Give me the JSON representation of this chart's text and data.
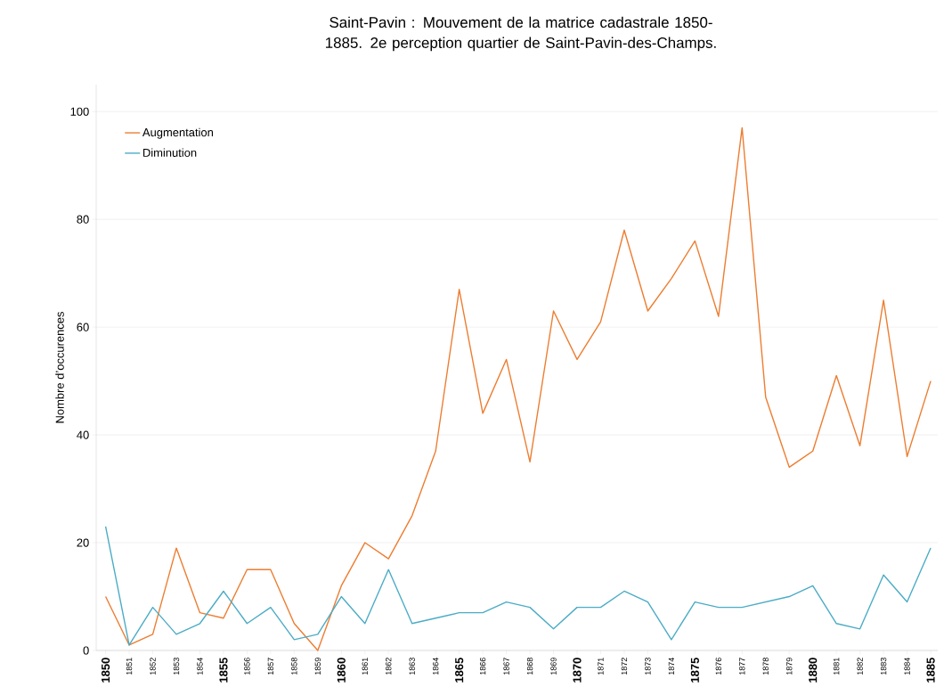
{
  "chart_data": {
    "type": "line",
    "title": "Saint-Pavin : Mouvement de la matrice cadastrale 1850-1885. 2e perception quartier de Saint-Pavin-des-Champs.",
    "ylabel": "Nombre d’occurences",
    "categories": [
      "1850",
      "1851",
      "1852",
      "1853",
      "1854",
      "1855",
      "1856",
      "1857",
      "1858",
      "1859",
      "1860",
      "1861",
      "1862",
      "1863",
      "1864",
      "1865",
      "1866",
      "1867",
      "1868",
      "1869",
      "1870",
      "1871",
      "1872",
      "1873",
      "1874",
      "1875",
      "1876",
      "1877",
      "1878",
      "1879",
      "1880",
      "1881",
      "1882",
      "1883",
      "1884",
      "1885"
    ],
    "series": [
      {
        "name": "Augmentation",
        "color": "#ed7d31",
        "values": [
          10,
          1,
          3,
          19,
          7,
          6,
          15,
          15,
          5,
          0,
          12,
          20,
          17,
          25,
          37,
          67,
          44,
          54,
          35,
          63,
          54,
          61,
          78,
          63,
          69,
          76,
          62,
          97,
          47,
          34,
          37,
          51,
          38,
          65,
          36,
          50
        ]
      },
      {
        "name": "Diminution",
        "color": "#4bacc6",
        "values": [
          23,
          1,
          8,
          3,
          5,
          11,
          5,
          8,
          2,
          3,
          10,
          5,
          15,
          5,
          6,
          7,
          7,
          9,
          8,
          4,
          8,
          8,
          11,
          9,
          2,
          9,
          8,
          8,
          9,
          10,
          12,
          5,
          4,
          14,
          9,
          19
        ]
      }
    ],
    "ylim": [
      0,
      105
    ],
    "yticks": [
      0,
      20,
      40,
      60,
      80,
      100
    ],
    "grid": "y",
    "legend": "top left",
    "marker": "none",
    "line_style": "solid"
  }
}
